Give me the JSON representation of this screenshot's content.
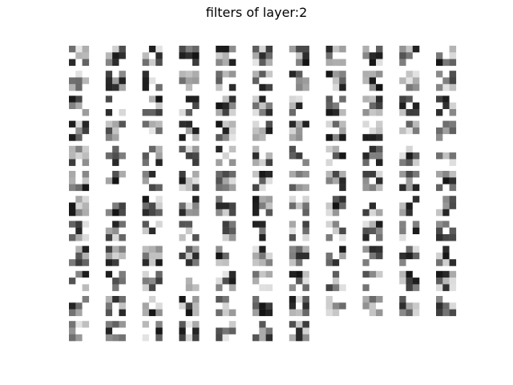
{
  "title": "filters of layer:2",
  "grid": {
    "columns": 11,
    "total_filters": 128,
    "kernel_size": 3,
    "colormap": "gray"
  }
}
